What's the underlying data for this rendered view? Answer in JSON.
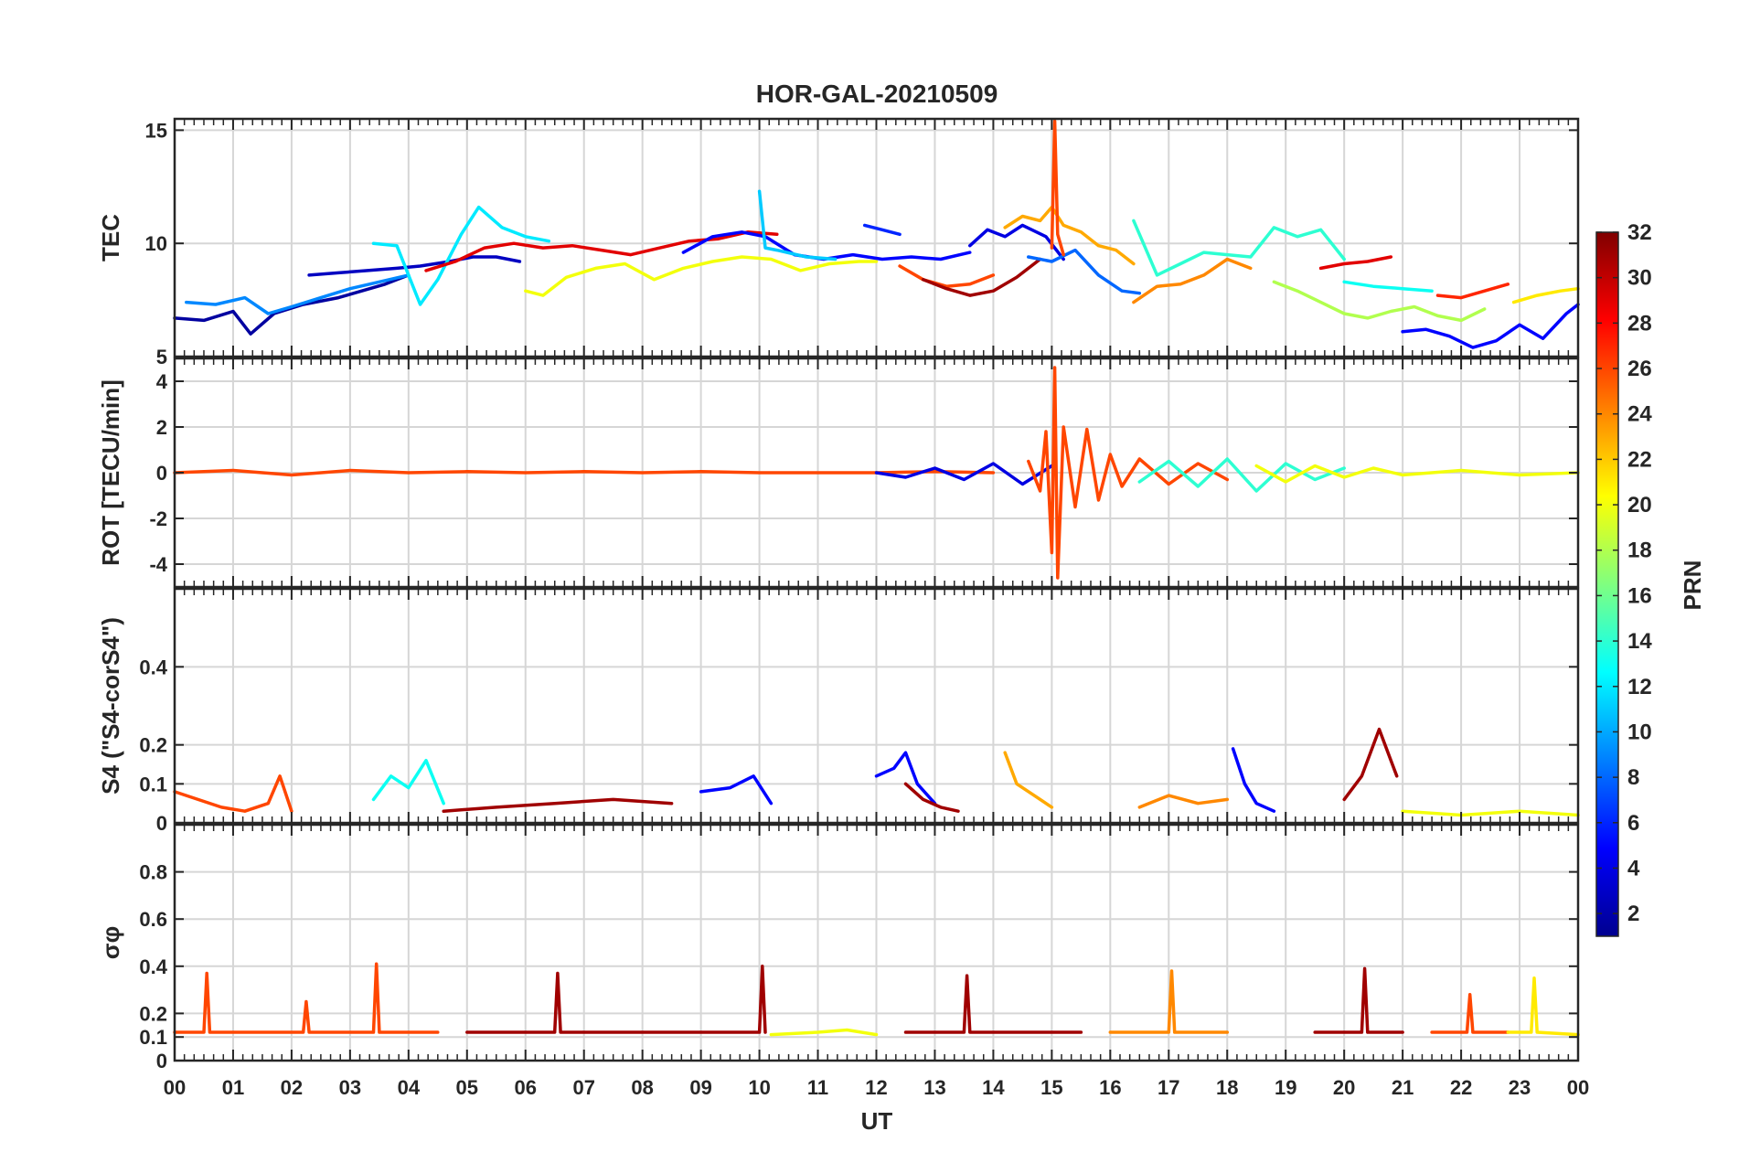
{
  "title": "HOR-GAL-20210509",
  "xlabel": "UT",
  "x_ticks": [
    "00",
    "01",
    "02",
    "03",
    "04",
    "05",
    "06",
    "07",
    "08",
    "09",
    "10",
    "11",
    "12",
    "13",
    "14",
    "15",
    "16",
    "17",
    "18",
    "19",
    "20",
    "21",
    "22",
    "23",
    "00"
  ],
  "colorbar": {
    "label": "PRN",
    "range": [
      1,
      32
    ],
    "ticks": [
      "2",
      "4",
      "6",
      "8",
      "10",
      "12",
      "14",
      "16",
      "18",
      "20",
      "22",
      "24",
      "26",
      "28",
      "30",
      "32"
    ],
    "colormap": "jet"
  },
  "chart_data": [
    {
      "type": "line",
      "id": "tec",
      "ylabel": "TEC",
      "ylim": [
        5,
        15.5
      ],
      "yticks": [
        "5",
        "10",
        "15"
      ],
      "grid": true,
      "series": [
        {
          "prn": 2,
          "x": [
            0,
            0.5,
            1,
            1.3,
            1.7,
            2.2,
            2.8,
            3.2,
            3.6,
            4.0
          ],
          "y": [
            6.7,
            6.6,
            7.0,
            6.0,
            6.9,
            7.3,
            7.6,
            7.9,
            8.2,
            8.6
          ]
        },
        {
          "prn": 9,
          "x": [
            0.2,
            0.7,
            1.2,
            1.6,
            2.0,
            2.5,
            3.0,
            3.5,
            4.0
          ],
          "y": [
            7.4,
            7.3,
            7.6,
            6.9,
            7.2,
            7.6,
            8.0,
            8.3,
            8.6
          ]
        },
        {
          "prn": 3,
          "x": [
            2.3,
            2.8,
            3.3,
            3.8,
            4.2,
            4.7,
            5.1,
            5.5,
            5.9
          ],
          "y": [
            8.6,
            8.7,
            8.8,
            8.9,
            9.0,
            9.2,
            9.4,
            9.4,
            9.2
          ]
        },
        {
          "prn": 12,
          "x": [
            3.4,
            3.8,
            4.2,
            4.5,
            4.9,
            5.2,
            5.6,
            6.0,
            6.4
          ],
          "y": [
            10.0,
            9.9,
            7.3,
            8.4,
            10.4,
            11.6,
            10.7,
            10.3,
            10.1
          ]
        },
        {
          "prn": 29,
          "x": [
            4.3,
            4.8,
            5.3,
            5.8,
            6.3,
            6.8,
            7.3,
            7.8,
            8.3,
            8.8,
            9.3,
            9.8,
            10.3
          ],
          "y": [
            8.8,
            9.2,
            9.8,
            10.0,
            9.8,
            9.9,
            9.7,
            9.5,
            9.8,
            10.1,
            10.2,
            10.5,
            10.4
          ]
        },
        {
          "prn": 20,
          "x": [
            6.0,
            6.3,
            6.7,
            7.2,
            7.7,
            8.2,
            8.7,
            9.2,
            9.7,
            10.2,
            10.7,
            11.2,
            11.7,
            12.0
          ],
          "y": [
            7.9,
            7.7,
            8.5,
            8.9,
            9.1,
            8.4,
            8.9,
            9.2,
            9.4,
            9.3,
            8.8,
            9.1,
            9.2,
            9.2
          ]
        },
        {
          "prn": 5,
          "x": [
            8.7,
            9.2,
            9.7,
            10.1,
            10.6,
            11.1,
            11.6,
            12.1,
            12.6,
            13.1,
            13.6
          ],
          "y": [
            9.6,
            10.3,
            10.5,
            10.3,
            9.5,
            9.3,
            9.5,
            9.3,
            9.4,
            9.3,
            9.6
          ]
        },
        {
          "prn": 11,
          "x": [
            10.0,
            10.1,
            10.3,
            10.8,
            11.3
          ],
          "y": [
            12.3,
            9.8,
            9.7,
            9.4,
            9.3
          ]
        },
        {
          "prn": 6,
          "x": [
            11.8,
            12.1,
            12.4
          ],
          "y": [
            10.8,
            10.6,
            10.4
          ]
        },
        {
          "prn": 26,
          "x": [
            12.4,
            12.8,
            13.2,
            13.6,
            14.0
          ],
          "y": [
            9.0,
            8.4,
            8.1,
            8.2,
            8.6
          ]
        },
        {
          "prn": 31,
          "x": [
            12.8,
            13.2,
            13.6,
            14.0,
            14.4,
            14.8
          ],
          "y": [
            8.4,
            8.0,
            7.7,
            7.9,
            8.5,
            9.3
          ]
        },
        {
          "prn": 4,
          "x": [
            13.6,
            13.9,
            14.2,
            14.5,
            14.9,
            15.2
          ],
          "y": [
            9.9,
            10.6,
            10.3,
            10.8,
            10.3,
            9.3
          ]
        },
        {
          "prn": 23,
          "x": [
            14.2,
            14.5,
            14.8,
            15.0,
            15.2,
            15.5,
            15.8,
            16.1,
            16.4
          ],
          "y": [
            10.7,
            11.2,
            11.0,
            11.6,
            10.8,
            10.5,
            9.9,
            9.7,
            9.1
          ]
        },
        {
          "prn": 8,
          "x": [
            14.6,
            15.0,
            15.4,
            15.8,
            16.2,
            16.5
          ],
          "y": [
            9.4,
            9.2,
            9.7,
            8.6,
            7.9,
            7.8
          ]
        },
        {
          "prn": 26,
          "x": [
            15.0,
            15.05,
            15.1,
            15.2
          ],
          "y": [
            9.8,
            15.4,
            10.4,
            9.5
          ]
        },
        {
          "prn": 14,
          "x": [
            16.4,
            16.8,
            17.2,
            17.6,
            18.0,
            18.4,
            18.8,
            19.2,
            19.6,
            20.0
          ],
          "y": [
            11.0,
            8.6,
            9.1,
            9.6,
            9.5,
            9.4,
            10.7,
            10.3,
            10.6,
            9.3
          ]
        },
        {
          "prn": 24,
          "x": [
            16.4,
            16.8,
            17.2,
            17.6,
            18.0,
            18.4
          ],
          "y": [
            7.4,
            8.1,
            8.2,
            8.6,
            9.3,
            8.9
          ]
        },
        {
          "prn": 18,
          "x": [
            18.8,
            19.2,
            19.6,
            20.0,
            20.4,
            20.8,
            21.2,
            21.6,
            22.0,
            22.4
          ],
          "y": [
            8.3,
            7.9,
            7.4,
            6.9,
            6.7,
            7.0,
            7.2,
            6.8,
            6.6,
            7.1
          ]
        },
        {
          "prn": 29,
          "x": [
            19.6,
            20.0,
            20.4,
            20.8
          ],
          "y": [
            8.9,
            9.1,
            9.2,
            9.4
          ]
        },
        {
          "prn": 13,
          "x": [
            20.0,
            20.5,
            21.0,
            21.5
          ],
          "y": [
            8.3,
            8.1,
            8.0,
            7.9
          ]
        },
        {
          "prn": 5,
          "x": [
            21.0,
            21.4,
            21.8,
            22.2,
            22.6,
            23.0,
            23.4,
            23.8,
            24.0
          ],
          "y": [
            6.1,
            6.2,
            5.9,
            5.4,
            5.7,
            6.4,
            5.8,
            6.9,
            7.3
          ]
        },
        {
          "prn": 27,
          "x": [
            21.6,
            22.0,
            22.4,
            22.8
          ],
          "y": [
            7.7,
            7.6,
            7.9,
            8.2
          ]
        },
        {
          "prn": 21,
          "x": [
            22.9,
            23.3,
            23.7,
            24.0
          ],
          "y": [
            7.4,
            7.7,
            7.9,
            8.0
          ]
        }
      ]
    },
    {
      "type": "line",
      "id": "rot",
      "ylabel": "ROT [TECU/min]",
      "ylim": [
        -5,
        5
      ],
      "yticks": [
        "-4",
        "-2",
        "0",
        "2",
        "4"
      ],
      "grid": true,
      "series": [
        {
          "prn": 26,
          "x": [
            0,
            1,
            2,
            3,
            4,
            5,
            6,
            7,
            8,
            9,
            10,
            11,
            12,
            13,
            14
          ],
          "y": [
            0,
            0.1,
            -0.1,
            0.1,
            0,
            0.05,
            0,
            0.05,
            0,
            0.05,
            0,
            0,
            0,
            0.05,
            0
          ]
        },
        {
          "prn": 4,
          "x": [
            12,
            12.5,
            13,
            13.5,
            14,
            14.5,
            15
          ],
          "y": [
            0,
            -0.2,
            0.2,
            -0.3,
            0.4,
            -0.5,
            0.3
          ]
        },
        {
          "prn": 26,
          "x": [
            14.6,
            14.8,
            14.9,
            15.0,
            15.05,
            15.1,
            15.2,
            15.4,
            15.6,
            15.8,
            16.0,
            16.2,
            16.5,
            17.0,
            17.5,
            18.0
          ],
          "y": [
            0.5,
            -0.8,
            1.8,
            -3.5,
            4.6,
            -4.6,
            2.0,
            -1.5,
            1.9,
            -1.2,
            0.8,
            -0.6,
            0.6,
            -0.5,
            0.4,
            -0.3
          ]
        },
        {
          "prn": 14,
          "x": [
            16.5,
            17.0,
            17.5,
            18.0,
            18.5,
            19.0,
            19.5,
            20.0
          ],
          "y": [
            -0.4,
            0.5,
            -0.6,
            0.6,
            -0.8,
            0.4,
            -0.3,
            0.2
          ]
        },
        {
          "prn": 20,
          "x": [
            18.5,
            19.0,
            19.5,
            20.0,
            20.5,
            21.0,
            22.0,
            23.0,
            24.0
          ],
          "y": [
            0.3,
            -0.4,
            0.3,
            -0.2,
            0.2,
            -0.1,
            0.1,
            -0.1,
            0
          ]
        }
      ]
    },
    {
      "type": "line",
      "id": "s4",
      "ylabel": "S4 (\"S4-corS4\")",
      "ylim": [
        0,
        0.6
      ],
      "yticks": [
        "0",
        "0.1",
        "0.2",
        "0.4"
      ],
      "grid": true,
      "series": [
        {
          "prn": 26,
          "x": [
            0,
            0.4,
            0.8,
            1.2,
            1.6,
            1.8,
            2.0
          ],
          "y": [
            0.08,
            0.06,
            0.04,
            0.03,
            0.05,
            0.12,
            0.03
          ]
        },
        {
          "prn": 13,
          "x": [
            3.4,
            3.7,
            4.0,
            4.3,
            4.6
          ],
          "y": [
            0.06,
            0.12,
            0.09,
            0.16,
            0.05
          ]
        },
        {
          "prn": 31,
          "x": [
            4.6,
            5.5,
            6.5,
            7.5,
            8.5
          ],
          "y": [
            0.03,
            0.04,
            0.05,
            0.06,
            0.05
          ]
        },
        {
          "prn": 5,
          "x": [
            9.0,
            9.5,
            9.9,
            10.2
          ],
          "y": [
            0.08,
            0.09,
            0.12,
            0.05
          ]
        },
        {
          "prn": 5,
          "x": [
            12.0,
            12.3,
            12.5,
            12.7,
            13.0
          ],
          "y": [
            0.12,
            0.14,
            0.18,
            0.1,
            0.05
          ]
        },
        {
          "prn": 31,
          "x": [
            12.5,
            12.8,
            13.1,
            13.4
          ],
          "y": [
            0.1,
            0.06,
            0.04,
            0.03
          ]
        },
        {
          "prn": 23,
          "x": [
            14.2,
            14.4,
            14.7,
            15.0
          ],
          "y": [
            0.18,
            0.1,
            0.07,
            0.04
          ]
        },
        {
          "prn": 24,
          "x": [
            16.5,
            17.0,
            17.5,
            18.0
          ],
          "y": [
            0.04,
            0.07,
            0.05,
            0.06
          ]
        },
        {
          "prn": 5,
          "x": [
            18.1,
            18.3,
            18.5,
            18.8
          ],
          "y": [
            0.19,
            0.1,
            0.05,
            0.03
          ]
        },
        {
          "prn": 31,
          "x": [
            20.0,
            20.3,
            20.6,
            20.9
          ],
          "y": [
            0.06,
            0.12,
            0.24,
            0.12
          ]
        },
        {
          "prn": 20,
          "x": [
            21.0,
            22.0,
            23.0,
            24.0
          ],
          "y": [
            0.03,
            0.02,
            0.03,
            0.02
          ]
        }
      ]
    },
    {
      "type": "line",
      "id": "sigma",
      "ylabel": "σφ",
      "ylim": [
        0,
        1
      ],
      "yticks": [
        "0",
        "0.1",
        "0.2",
        "0.4",
        "0.6",
        "0.8"
      ],
      "grid": true,
      "series": [
        {
          "prn": 26,
          "x": [
            0,
            0.5,
            0.55,
            0.6,
            1.5,
            2.2,
            2.25,
            2.3,
            3.4,
            3.45,
            3.5,
            4.5
          ],
          "y": [
            0.12,
            0.12,
            0.37,
            0.12,
            0.12,
            0.12,
            0.25,
            0.12,
            0.12,
            0.41,
            0.12,
            0.12
          ]
        },
        {
          "prn": 31,
          "x": [
            5,
            6.5,
            6.55,
            6.6,
            8,
            9,
            10.0,
            10.05,
            10.1
          ],
          "y": [
            0.12,
            0.12,
            0.37,
            0.12,
            0.12,
            0.12,
            0.12,
            0.4,
            0.12
          ]
        },
        {
          "prn": 20,
          "x": [
            10.2,
            11.0,
            11.5,
            12.0
          ],
          "y": [
            0.11,
            0.12,
            0.13,
            0.11
          ]
        },
        {
          "prn": 31,
          "x": [
            12.5,
            13.5,
            13.55,
            13.6,
            14.5,
            15.5
          ],
          "y": [
            0.12,
            0.12,
            0.36,
            0.12,
            0.12,
            0.12
          ]
        },
        {
          "prn": 24,
          "x": [
            16,
            17.0,
            17.05,
            17.1,
            18.0
          ],
          "y": [
            0.12,
            0.12,
            0.38,
            0.12,
            0.12
          ]
        },
        {
          "prn": 31,
          "x": [
            19.5,
            20.3,
            20.35,
            20.4,
            21.0
          ],
          "y": [
            0.12,
            0.12,
            0.39,
            0.12,
            0.12
          ]
        },
        {
          "prn": 26,
          "x": [
            21.5,
            22.1,
            22.15,
            22.2,
            22.8
          ],
          "y": [
            0.12,
            0.12,
            0.28,
            0.12,
            0.12
          ]
        },
        {
          "prn": 21,
          "x": [
            22.8,
            23.2,
            23.25,
            23.3,
            24.0
          ],
          "y": [
            0.12,
            0.12,
            0.35,
            0.12,
            0.11
          ]
        }
      ]
    }
  ]
}
